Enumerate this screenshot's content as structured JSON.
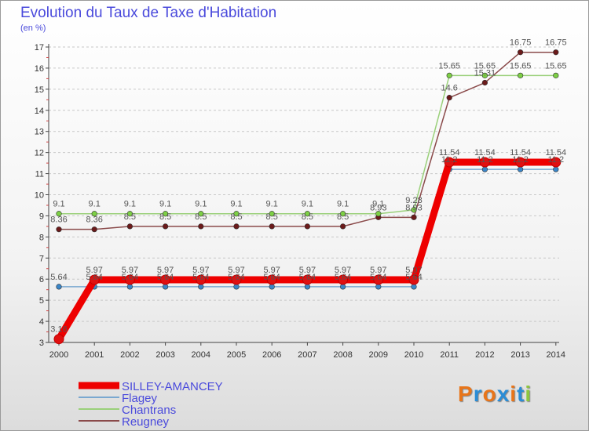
{
  "title": "Evolution du Taux de Taxe d'Habitation",
  "subtitle": "(en %)",
  "logo": {
    "text": "Proxiti",
    "colors": [
      "#e8751a",
      "#2b8dd6",
      "#e8751a",
      "#2b8dd6",
      "#e8751a",
      "#2b8dd6",
      "#8dc63f"
    ]
  },
  "chart_data": {
    "type": "line",
    "title": "Evolution du Taux de Taxe d'Habitation",
    "ylabel": "(en %)",
    "ylim": [
      3,
      17
    ],
    "yticks": [
      3,
      4,
      5,
      6,
      7,
      8,
      9,
      10,
      11,
      12,
      13,
      14,
      15,
      16,
      17
    ],
    "categories": [
      "2000",
      "2001",
      "2002",
      "2003",
      "2004",
      "2005",
      "2006",
      "2007",
      "2008",
      "2009",
      "2010",
      "2011",
      "2012",
      "2013",
      "2014"
    ],
    "grid": "dashed-horizontal",
    "legend": "bottom-left",
    "series": [
      {
        "name": "Reugney",
        "color": "#6b1a1a",
        "lineColor": "#8a4a4a",
        "width": 1.5,
        "values": [
          8.36,
          8.36,
          8.5,
          8.5,
          8.5,
          8.5,
          8.5,
          8.5,
          8.5,
          8.93,
          8.93,
          14.6,
          15.31,
          16.75,
          16.75
        ],
        "labels": [
          "8.36",
          "8.36",
          "8.5",
          "8.5",
          "8.5",
          "8.5",
          "8.5",
          "8.5",
          "8.5",
          "8.93",
          "8.93",
          "14.6",
          "15.31",
          "16.75",
          "16.75"
        ]
      },
      {
        "name": "Chantrans",
        "color": "#7dd045",
        "lineColor": "#9ad07a",
        "width": 1.5,
        "values": [
          9.1,
          9.1,
          9.1,
          9.1,
          9.1,
          9.1,
          9.1,
          9.1,
          9.1,
          9.1,
          9.28,
          15.65,
          15.65,
          15.65,
          15.65
        ],
        "labels": [
          "9.1",
          "9.1",
          "9.1",
          "9.1",
          "9.1",
          "9.1",
          "9.1",
          "9.1",
          "9.1",
          "9.1",
          "9.28",
          "15.65",
          "15.65",
          "15.65",
          "15.65"
        ]
      },
      {
        "name": "Flagey",
        "color": "#3a86c8",
        "lineColor": "#7aa8d0",
        "width": 1.5,
        "values": [
          5.64,
          5.64,
          5.64,
          5.64,
          5.64,
          5.64,
          5.64,
          5.64,
          5.64,
          5.64,
          5.64,
          11.2,
          11.2,
          11.2,
          11.2
        ],
        "labels": [
          "5.64",
          "5.64",
          "5.64",
          "5.64",
          "5.64",
          "5.64",
          "5.64",
          "5.64",
          "5.64",
          "5.64",
          "5.64",
          "11.2",
          "11.2",
          "11.2",
          "11.2"
        ]
      },
      {
        "name": "SILLEY-AMANCEY",
        "color": "#e01010",
        "lineColor": "#ee0000",
        "width": 9,
        "values": [
          3.16,
          5.97,
          5.97,
          5.97,
          5.97,
          5.97,
          5.97,
          5.97,
          5.97,
          5.97,
          5.97,
          11.54,
          11.54,
          11.54,
          11.54
        ],
        "labels": [
          "3.16",
          "5.97",
          "5.97",
          "5.97",
          "5.97",
          "5.97",
          "5.97",
          "5.97",
          "5.97",
          "5.97",
          "5.97",
          "11.54",
          "11.54",
          "11.54",
          "11.54"
        ]
      }
    ],
    "legend_order": [
      "SILLEY-AMANCEY",
      "Flagey",
      "Chantrans",
      "Reugney"
    ]
  }
}
